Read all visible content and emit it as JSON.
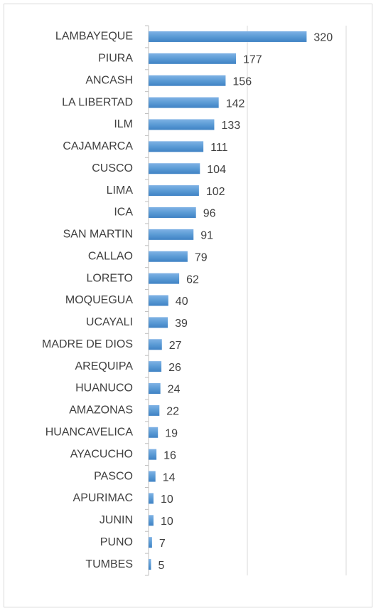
{
  "chart_data": {
    "type": "bar",
    "orientation": "horizontal",
    "categories": [
      "LAMBAYEQUE",
      "PIURA",
      "ANCASH",
      "LA LIBERTAD",
      "ILM",
      "CAJAMARCA",
      "CUSCO",
      "LIMA",
      "ICA",
      "SAN MARTIN",
      "CALLAO",
      "LORETO",
      "MOQUEGUA",
      "UCAYALI",
      "MADRE DE DIOS",
      "AREQUIPA",
      "HUANUCO",
      "AMAZONAS",
      "HUANCAVELICA",
      "AYACUCHO",
      "PASCO",
      "APURIMAC",
      "JUNIN",
      "PUNO",
      "TUMBES"
    ],
    "values": [
      320,
      177,
      156,
      142,
      133,
      111,
      104,
      102,
      96,
      91,
      79,
      62,
      40,
      39,
      27,
      26,
      24,
      22,
      19,
      16,
      14,
      10,
      10,
      7,
      5
    ],
    "color": "#5b9bd5",
    "xlim": [
      0,
      400
    ],
    "xticks": [
      0,
      200,
      400
    ],
    "grid": true
  }
}
